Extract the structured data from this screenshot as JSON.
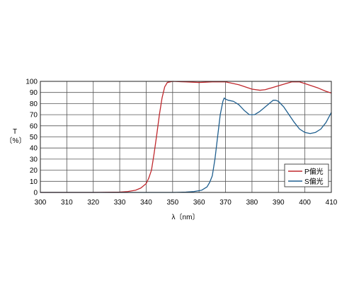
{
  "chart_data": {
    "type": "line",
    "xlabel": "λ〔nm〕",
    "ylabel_top": "T",
    "ylabel_bottom": "〔%〕",
    "xlim": [
      300,
      410
    ],
    "ylim": [
      0,
      100
    ],
    "x_ticks": [
      300,
      310,
      320,
      330,
      340,
      350,
      360,
      370,
      380,
      390,
      400,
      410
    ],
    "y_ticks": [
      0,
      10,
      20,
      30,
      40,
      50,
      60,
      70,
      80,
      90,
      100
    ],
    "grid": true,
    "legend_position": "bottom-right",
    "series": [
      {
        "name": "P偏光",
        "color": "#c0282d",
        "points": [
          [
            300,
            0
          ],
          [
            320,
            0
          ],
          [
            330,
            0.3
          ],
          [
            333,
            0.8
          ],
          [
            336,
            2
          ],
          [
            338,
            4
          ],
          [
            340,
            8
          ],
          [
            341,
            13
          ],
          [
            342,
            20
          ],
          [
            343,
            35
          ],
          [
            344,
            52
          ],
          [
            345,
            70
          ],
          [
            346,
            85
          ],
          [
            347,
            95
          ],
          [
            348,
            99
          ],
          [
            350,
            100
          ],
          [
            355,
            99.5
          ],
          [
            360,
            99
          ],
          [
            365,
            99.5
          ],
          [
            370,
            99.5
          ],
          [
            375,
            97
          ],
          [
            380,
            93
          ],
          [
            383,
            92
          ],
          [
            385,
            92.5
          ],
          [
            390,
            96
          ],
          [
            395,
            99.5
          ],
          [
            398,
            99.5
          ],
          [
            400,
            98
          ],
          [
            405,
            94
          ],
          [
            408,
            91
          ],
          [
            410,
            89.5
          ]
        ]
      },
      {
        "name": "S偏光",
        "color": "#1f5f8f",
        "points": [
          [
            300,
            0
          ],
          [
            325,
            0
          ],
          [
            330,
            0
          ],
          [
            340,
            0
          ],
          [
            350,
            0
          ],
          [
            355,
            0.3
          ],
          [
            358,
            0.8
          ],
          [
            361,
            2
          ],
          [
            363,
            5
          ],
          [
            364,
            9
          ],
          [
            365,
            15
          ],
          [
            366,
            30
          ],
          [
            367,
            50
          ],
          [
            368,
            70
          ],
          [
            369,
            82
          ],
          [
            369.5,
            85
          ],
          [
            370,
            84
          ],
          [
            371,
            83
          ],
          [
            373,
            82
          ],
          [
            375,
            79
          ],
          [
            377,
            74
          ],
          [
            379,
            70
          ],
          [
            381,
            70
          ],
          [
            383,
            73
          ],
          [
            385,
            77
          ],
          [
            387,
            81
          ],
          [
            388,
            83
          ],
          [
            389,
            83
          ],
          [
            390,
            82
          ],
          [
            392,
            77
          ],
          [
            394,
            70
          ],
          [
            396,
            63
          ],
          [
            398,
            57
          ],
          [
            400,
            54
          ],
          [
            402,
            53
          ],
          [
            404,
            54
          ],
          [
            406,
            57
          ],
          [
            408,
            63
          ],
          [
            410,
            72
          ]
        ]
      }
    ]
  }
}
